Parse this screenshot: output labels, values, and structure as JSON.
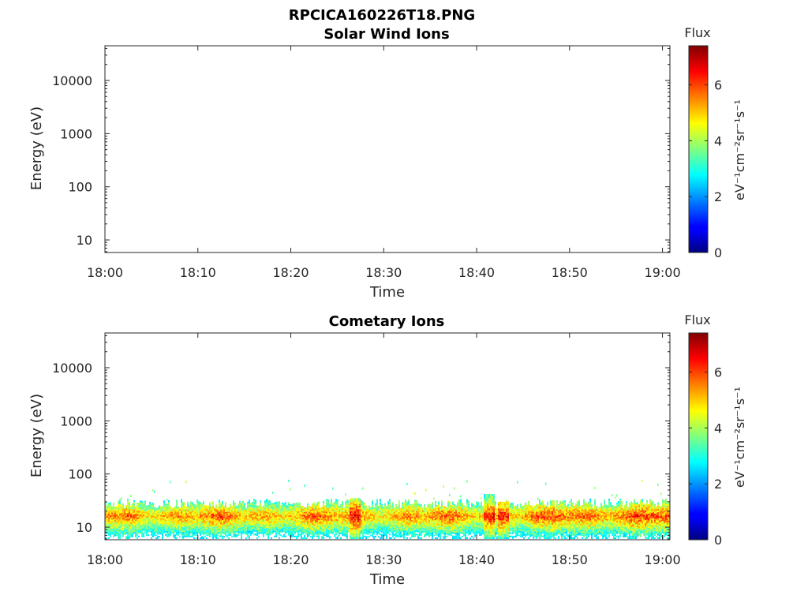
{
  "figure": {
    "title": "RPCICA160226T18.PNG"
  },
  "chart_data": [
    {
      "type": "heatmap",
      "title": "Solar Wind Ions",
      "xlabel": "Time",
      "ylabel": "Energy (eV)",
      "x_ticks": [
        "18:00",
        "18:10",
        "18:20",
        "18:30",
        "18:40",
        "18:50",
        "19:00"
      ],
      "y_ticks": [
        "10",
        "100",
        "1000",
        "10000"
      ],
      "y_scale": "log",
      "ylim": [
        5.8,
        45000
      ],
      "xlim_minutes": [
        0,
        60.8
      ],
      "colorbar": {
        "title": "Flux",
        "label": "eV⁻¹cm⁻²sr⁻¹s⁻¹",
        "ticks": [
          "0",
          "2",
          "4",
          "6"
        ],
        "range": [
          0,
          7.4
        ],
        "colormap": "jet"
      },
      "data_summary": "empty (no flux recorded)"
    },
    {
      "type": "heatmap",
      "title": "Cometary Ions",
      "xlabel": "Time",
      "ylabel": "Energy (eV)",
      "x_ticks": [
        "18:00",
        "18:10",
        "18:20",
        "18:30",
        "18:40",
        "18:50",
        "19:00"
      ],
      "y_ticks": [
        "10",
        "100",
        "1000",
        "10000"
      ],
      "y_scale": "log",
      "ylim": [
        5.8,
        45000
      ],
      "xlim_minutes": [
        0,
        60.8
      ],
      "colorbar": {
        "title": "Flux",
        "label": "eV⁻¹cm⁻²sr⁻¹s⁻¹",
        "ticks": [
          "0",
          "2",
          "4",
          "6"
        ],
        "range": [
          0,
          7.4
        ],
        "colormap": "jet"
      },
      "band": {
        "energy_low_eV": 6,
        "energy_high_eV": 28,
        "peak_energy_eV": 16,
        "flux_range": [
          3,
          7
        ],
        "sporadic_counts_up_to_eV": 80
      },
      "spikes": [
        {
          "time_min": 26.8,
          "energy_high_eV": 35,
          "flux": 7
        },
        {
          "time_min": 41.2,
          "energy_high_eV": 42,
          "flux": 7
        },
        {
          "time_min": 42.8,
          "energy_high_eV": 30,
          "flux": 6.8
        }
      ]
    }
  ]
}
